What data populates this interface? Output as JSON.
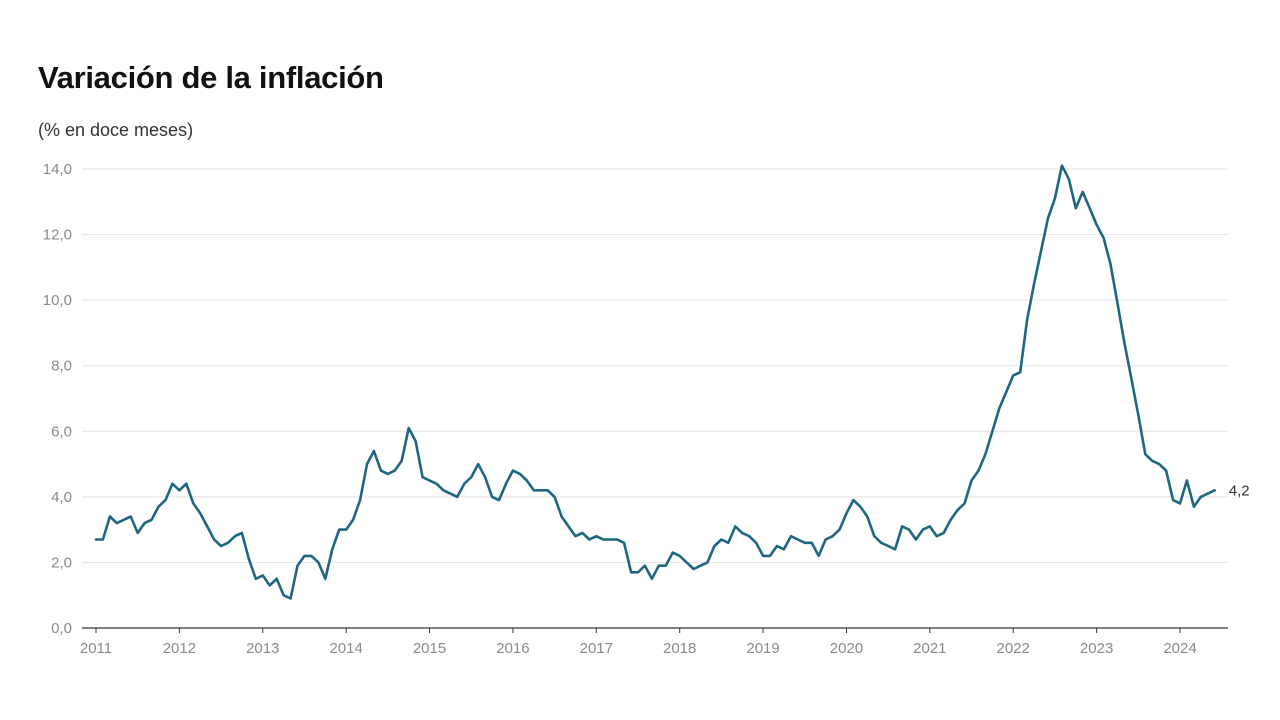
{
  "chart_data": {
    "type": "line",
    "title": "Variación de la inflación",
    "subtitle": "(% en doce meses)",
    "xlabel": "",
    "ylabel": "",
    "ylim": [
      0,
      14
    ],
    "y_ticks": [
      "0,0",
      "2,0",
      "4,0",
      "6,0",
      "8,0",
      "10,0",
      "12,0",
      "14,0"
    ],
    "x_ticks": [
      "2011",
      "2012",
      "2013",
      "2014",
      "2015",
      "2016",
      "2017",
      "2018",
      "2019",
      "2020",
      "2021",
      "2022",
      "2023",
      "2024"
    ],
    "grid": "horizontal",
    "legend": "none",
    "line_color": "#1f6681",
    "end_label": "4,2",
    "x_start": "2011-01",
    "x_end": "2024-06",
    "frequency": "monthly",
    "series": [
      {
        "values": [
          2.7,
          2.7,
          3.4,
          3.2,
          3.3,
          3.4,
          2.9,
          3.2,
          3.3,
          3.7,
          3.9,
          4.4,
          4.2,
          4.4,
          3.8,
          3.5,
          3.1,
          2.7,
          2.5,
          2.6,
          2.8,
          2.9,
          2.1,
          1.5,
          1.6,
          1.3,
          1.5,
          1.0,
          0.9,
          1.9,
          2.2,
          2.2,
          2.0,
          1.5,
          2.4,
          3.0,
          3.0,
          3.3,
          3.9,
          5.0,
          5.4,
          4.8,
          4.7,
          4.8,
          5.1,
          6.1,
          5.7,
          4.6,
          4.5,
          4.4,
          4.2,
          4.1,
          4.0,
          4.4,
          4.6,
          5.0,
          4.6,
          4.0,
          3.9,
          4.4,
          4.8,
          4.7,
          4.5,
          4.2,
          4.2,
          4.2,
          4.0,
          3.4,
          3.1,
          2.8,
          2.9,
          2.7,
          2.8,
          2.7,
          2.7,
          2.7,
          2.6,
          1.7,
          1.7,
          1.9,
          1.5,
          1.9,
          1.9,
          2.3,
          2.2,
          2.0,
          1.8,
          1.9,
          2.0,
          2.5,
          2.7,
          2.6,
          3.1,
          2.9,
          2.8,
          2.6,
          2.2,
          2.2,
          2.5,
          2.4,
          2.8,
          2.7,
          2.6,
          2.6,
          2.2,
          2.7,
          2.8,
          3.0,
          3.5,
          3.9,
          3.7,
          3.4,
          2.8,
          2.6,
          2.5,
          2.4,
          3.1,
          3.0,
          2.7,
          3.0,
          3.1,
          2.8,
          2.9,
          3.3,
          3.6,
          3.8,
          4.5,
          4.8,
          5.3,
          6.0,
          6.7,
          7.2,
          7.7,
          7.8,
          9.4,
          10.5,
          11.5,
          12.5,
          13.1,
          14.1,
          13.7,
          12.8,
          13.3,
          12.8,
          12.3,
          11.9,
          11.1,
          9.9,
          8.7,
          7.6,
          6.5,
          5.3,
          5.1,
          5.0,
          4.8,
          3.9,
          3.8,
          4.5,
          3.7,
          4.0,
          4.1,
          4.2
        ]
      }
    ]
  }
}
